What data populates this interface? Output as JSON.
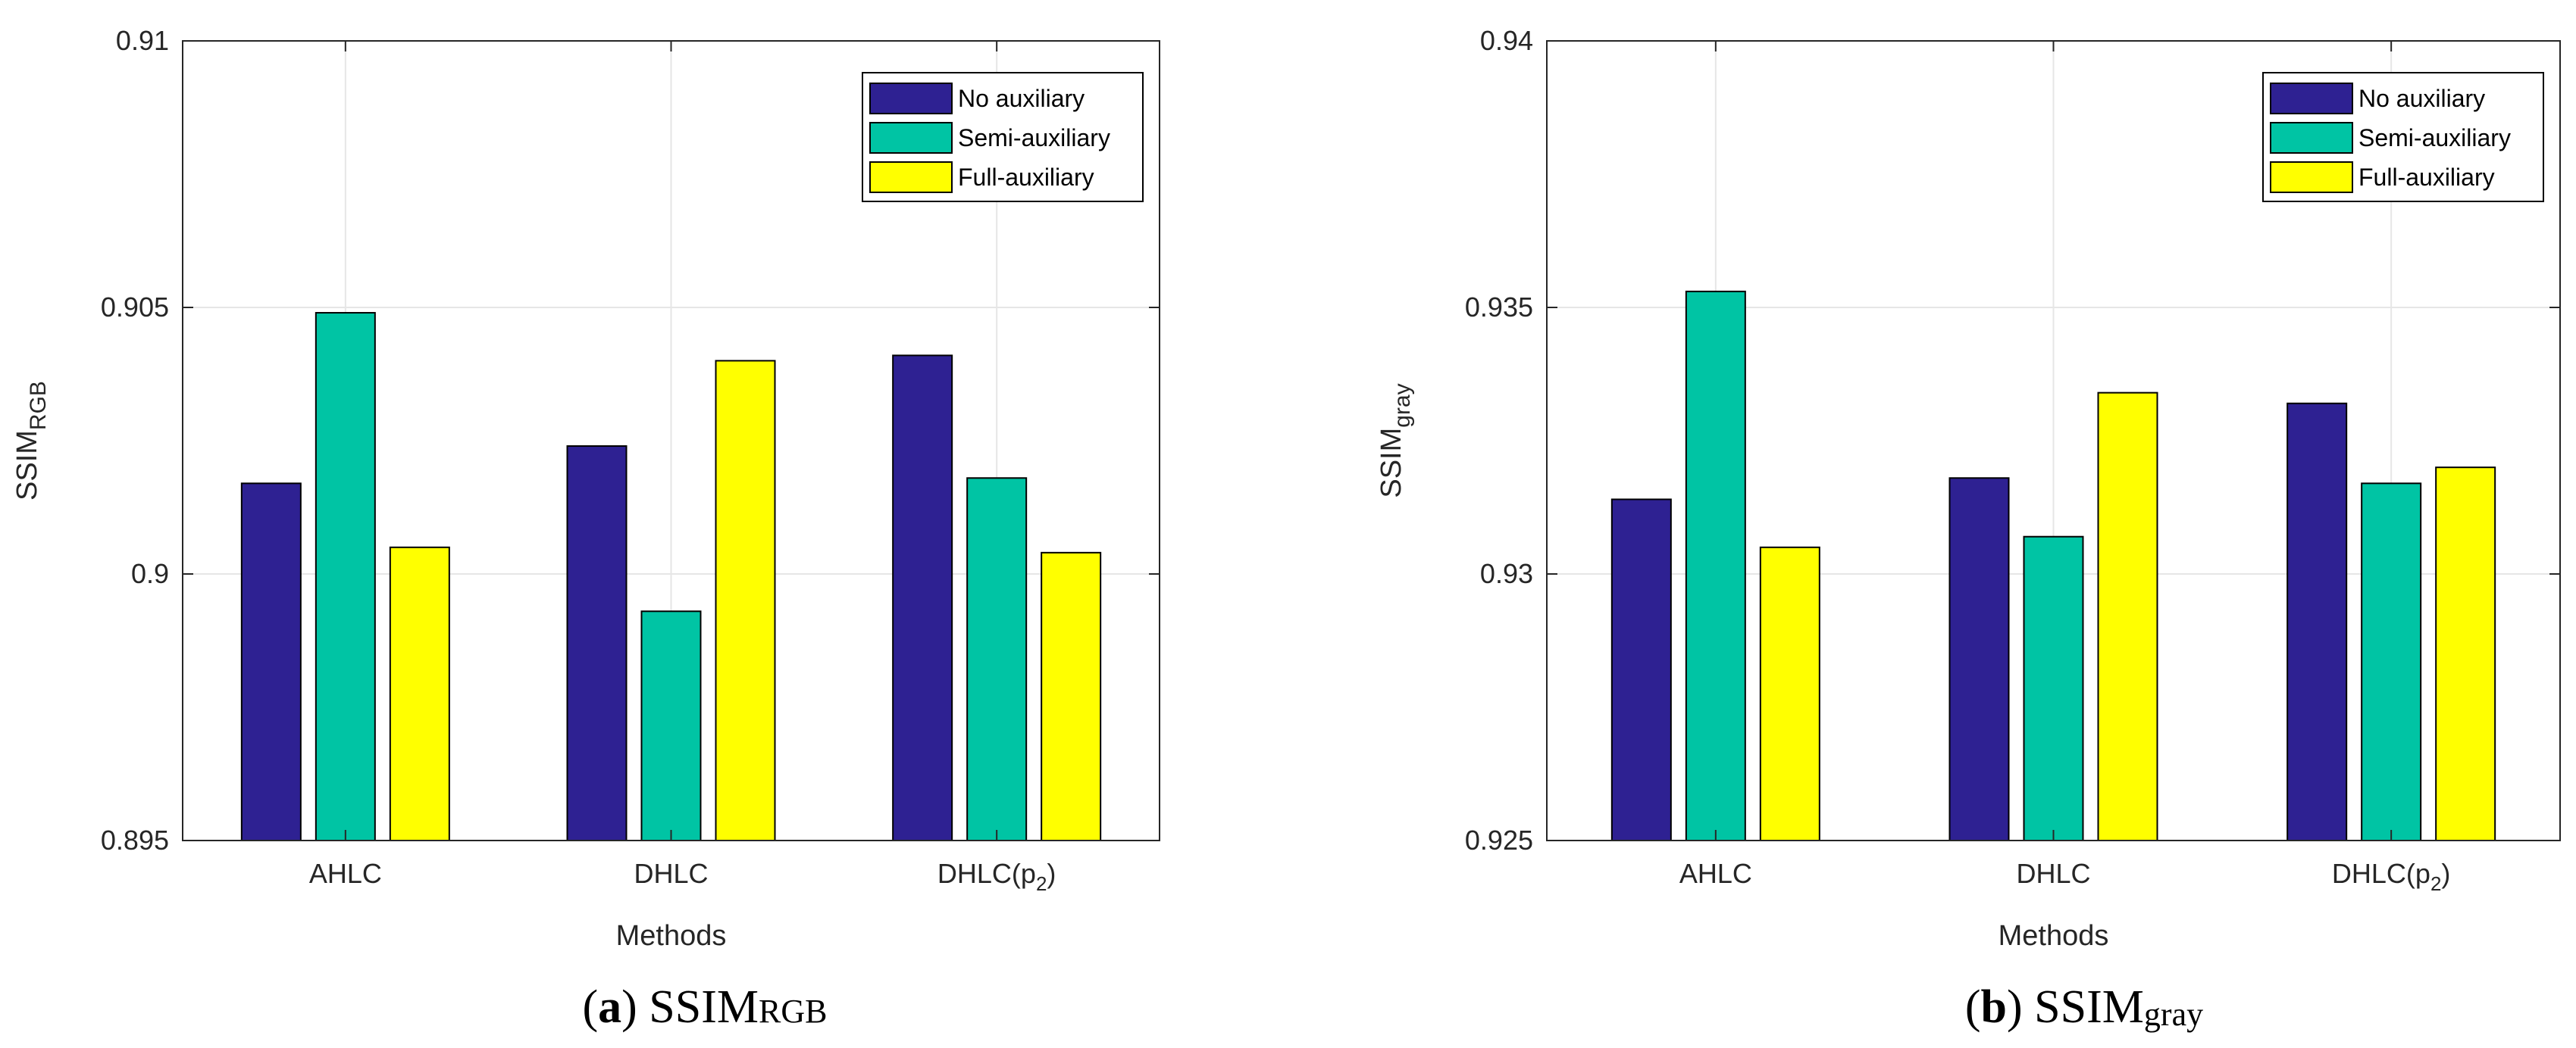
{
  "colors": {
    "no_auxiliary": "#2e2192",
    "semi_auxiliary": "#00c4a4",
    "full_auxiliary": "#ffff00",
    "grid": "#e6e6e6",
    "axis": "#262626"
  },
  "chart_data": [
    {
      "type": "bar",
      "title": "",
      "xlabel": "Methods",
      "ylabel_main": "SSIM",
      "ylabel_sub": "RGB",
      "categories": [
        "AHLC",
        "DHLC",
        "DHLC(p"
      ],
      "category_subscripts": [
        "",
        "",
        "2"
      ],
      "category_suffix": [
        "",
        "",
        ")"
      ],
      "ylim": [
        0.895,
        0.91
      ],
      "yticks": [
        0.895,
        0.9,
        0.905,
        0.91
      ],
      "ytick_labels": [
        "0.895",
        "0.9",
        "0.905",
        "0.91"
      ],
      "grid": true,
      "legend_position": "top-right",
      "series": [
        {
          "name": "No auxiliary",
          "color_key": "no_auxiliary",
          "values": [
            0.9017,
            0.9024,
            0.9041
          ]
        },
        {
          "name": "Semi-auxiliary",
          "color_key": "semi_auxiliary",
          "values": [
            0.9049,
            0.8993,
            0.9018
          ]
        },
        {
          "name": "Full-auxiliary",
          "color_key": "full_auxiliary",
          "values": [
            0.9005,
            0.904,
            0.9004
          ]
        }
      ],
      "caption_label": "a",
      "caption_main": "SSIM",
      "caption_sub": "RGB"
    },
    {
      "type": "bar",
      "title": "",
      "xlabel": "Methods",
      "ylabel_main": "SSIM",
      "ylabel_sub": "gray",
      "categories": [
        "AHLC",
        "DHLC",
        "DHLC(p"
      ],
      "category_subscripts": [
        "",
        "",
        "2"
      ],
      "category_suffix": [
        "",
        "",
        ")"
      ],
      "ylim": [
        0.925,
        0.94
      ],
      "yticks": [
        0.925,
        0.93,
        0.935,
        0.94
      ],
      "ytick_labels": [
        "0.925",
        "0.93",
        "0.935",
        "0.94"
      ],
      "grid": true,
      "legend_position": "top-right",
      "series": [
        {
          "name": "No auxiliary",
          "color_key": "no_auxiliary",
          "values": [
            0.9314,
            0.9318,
            0.9332
          ]
        },
        {
          "name": "Semi-auxiliary",
          "color_key": "semi_auxiliary",
          "values": [
            0.9353,
            0.9307,
            0.9317
          ]
        },
        {
          "name": "Full-auxiliary",
          "color_key": "full_auxiliary",
          "values": [
            0.9305,
            0.9334,
            0.932
          ]
        }
      ],
      "caption_label": "b",
      "caption_main": "SSIM",
      "caption_sub": "gray"
    }
  ]
}
